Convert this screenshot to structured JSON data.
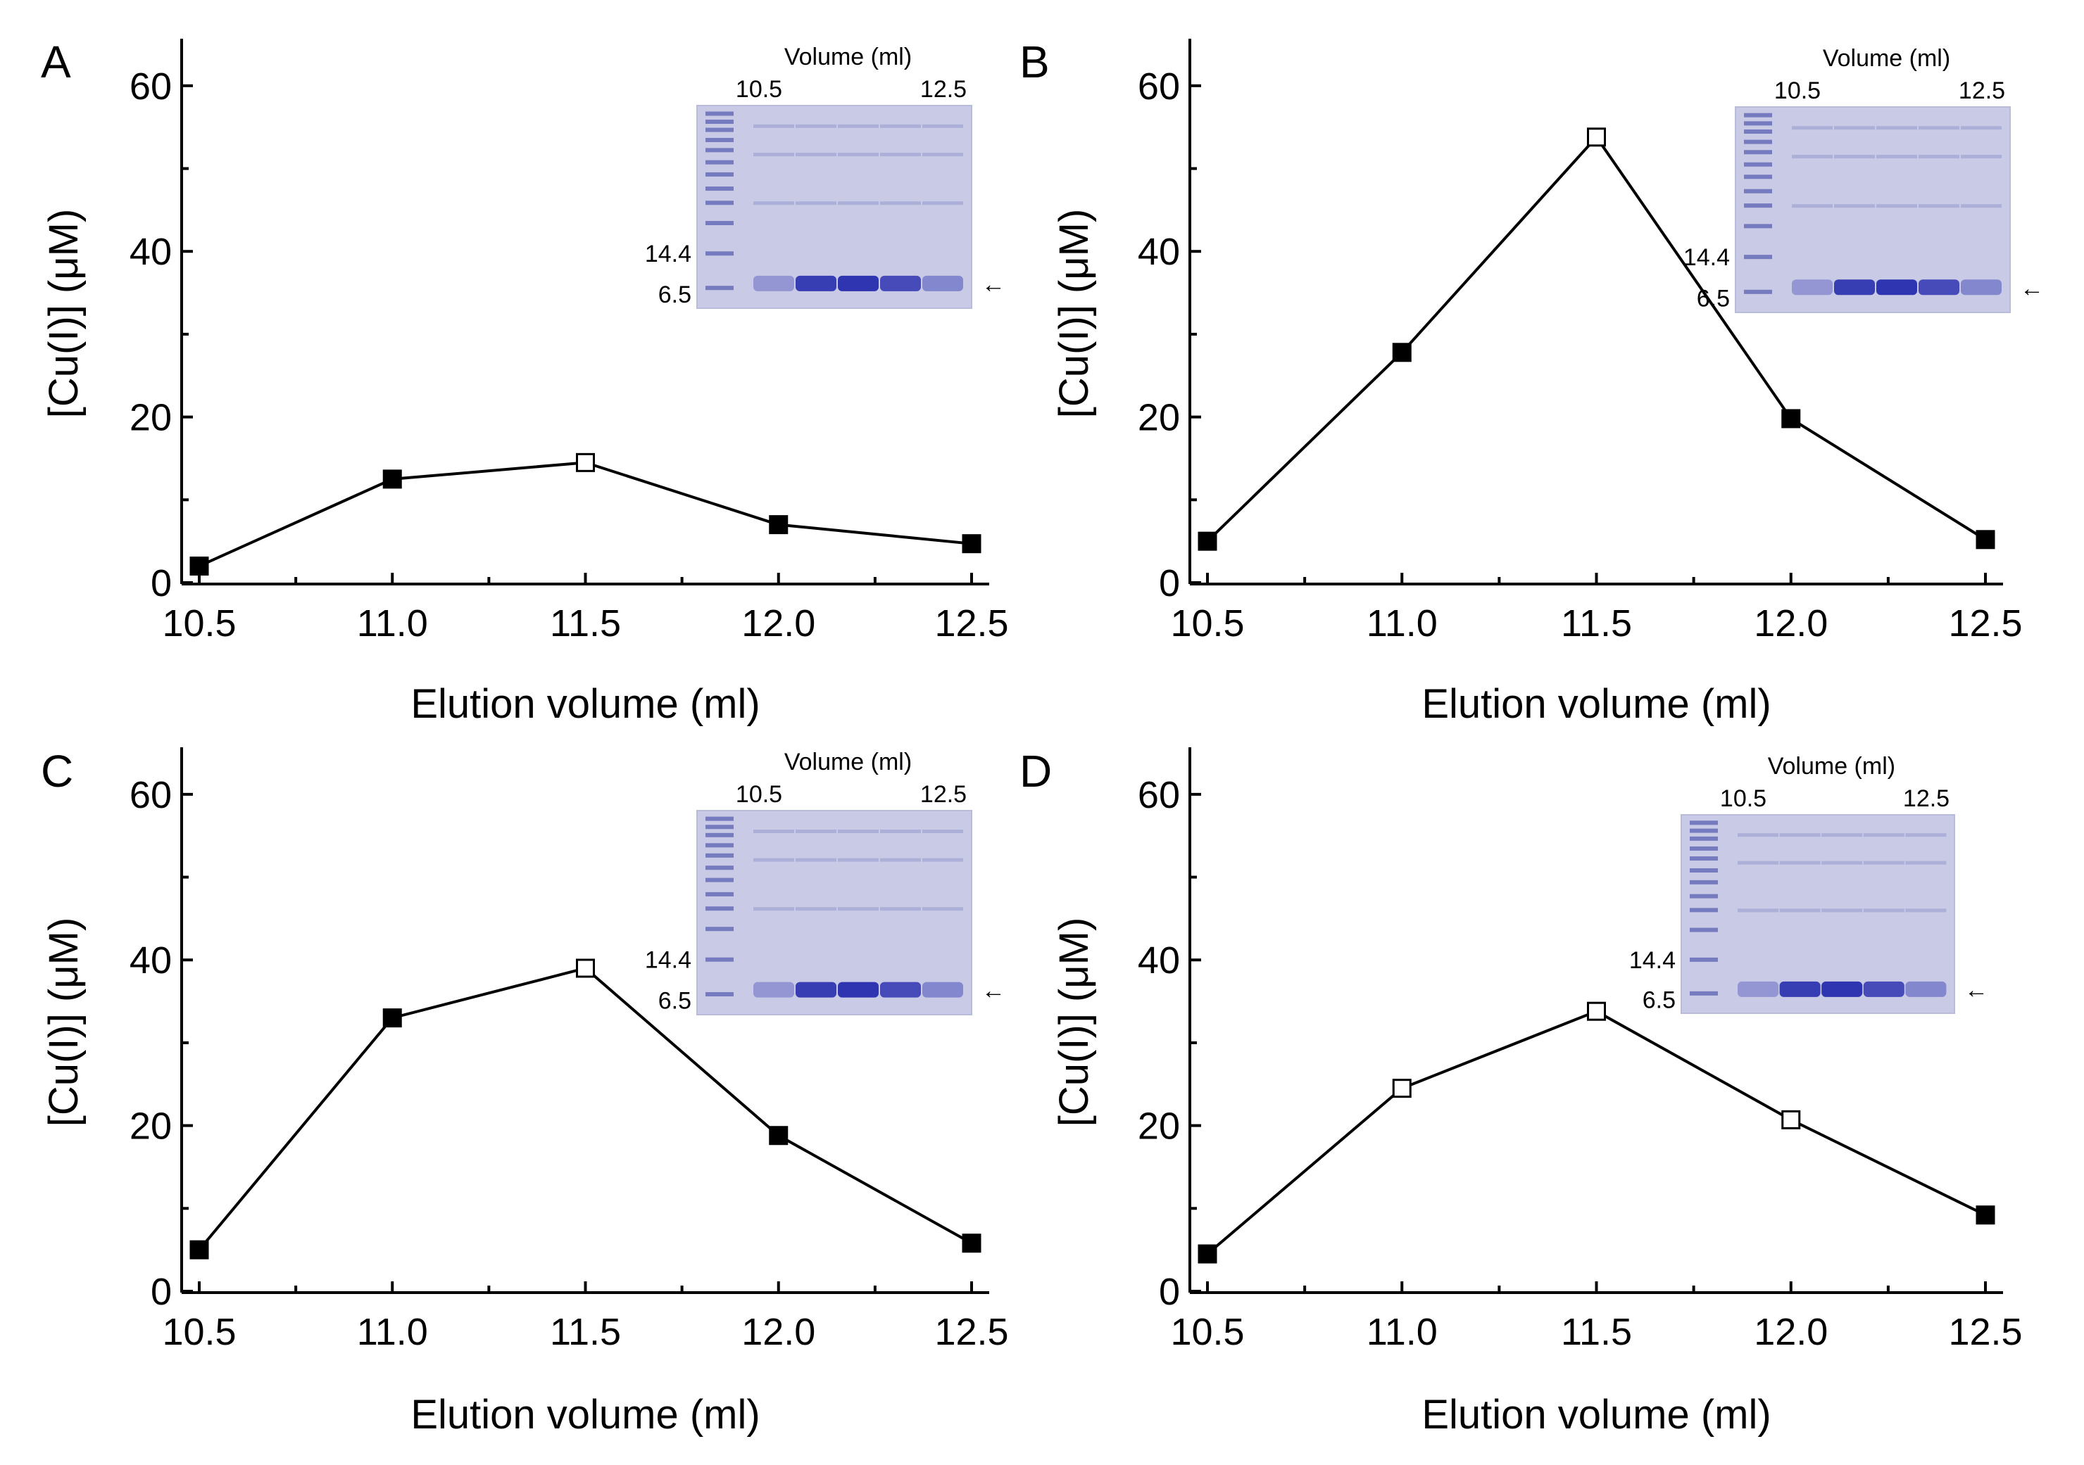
{
  "chart_data": [
    {
      "type": "line",
      "panel": "A",
      "x": [
        10.5,
        11.0,
        11.5,
        12.0,
        12.5
      ],
      "values": [
        2,
        12.5,
        14.5,
        7,
        4.7
      ],
      "markers": [
        "filled",
        "filled",
        "open",
        "filled",
        "filled"
      ],
      "xlabel": "Elution volume (ml)",
      "ylabel": "[Cu(I)] (μM)",
      "xlim": [
        10.5,
        12.5
      ],
      "ylim": [
        0,
        65
      ],
      "xticks": [
        "10.5",
        "11.0",
        "11.5",
        "12.0",
        "12.5"
      ],
      "yticks": [
        "0",
        "20",
        "40",
        "60"
      ],
      "inset": {
        "title": "Volume (ml)",
        "left_label": "10.5",
        "right_label": "12.5",
        "marker_top": "14.4",
        "marker_bottom": "6.5",
        "arrow": "←"
      }
    },
    {
      "type": "line",
      "panel": "B",
      "x": [
        10.5,
        11.0,
        11.5,
        12.0,
        12.5
      ],
      "values": [
        5,
        27.8,
        53.8,
        19.8,
        5.2
      ],
      "markers": [
        "filled",
        "filled",
        "open",
        "filled",
        "filled"
      ],
      "xlabel": "Elution volume (ml)",
      "ylabel": "[Cu(I)] (μM)",
      "xlim": [
        10.5,
        12.5
      ],
      "ylim": [
        0,
        65
      ],
      "xticks": [
        "10.5",
        "11.0",
        "11.5",
        "12.0",
        "12.5"
      ],
      "yticks": [
        "0",
        "20",
        "40",
        "60"
      ],
      "inset": {
        "title": "Volume (ml)",
        "left_label": "10.5",
        "right_label": "12.5",
        "marker_top": "14.4",
        "marker_bottom": "6.5",
        "arrow": "←"
      }
    },
    {
      "type": "line",
      "panel": "C",
      "x": [
        10.5,
        11.0,
        11.5,
        12.0,
        12.5
      ],
      "values": [
        5,
        33,
        39,
        18.8,
        5.8
      ],
      "markers": [
        "filled",
        "filled",
        "open",
        "filled",
        "filled"
      ],
      "xlabel": "Elution volume (ml)",
      "ylabel": "[Cu(I)] (μM)",
      "xlim": [
        10.5,
        12.5
      ],
      "ylim": [
        0,
        65
      ],
      "xticks": [
        "10.5",
        "11.0",
        "11.5",
        "12.0",
        "12.5"
      ],
      "yticks": [
        "0",
        "20",
        "40",
        "60"
      ],
      "inset": {
        "title": "Volume (ml)",
        "left_label": "10.5",
        "right_label": "12.5",
        "marker_top": "14.4",
        "marker_bottom": "6.5",
        "arrow": "←"
      }
    },
    {
      "type": "line",
      "panel": "D",
      "x": [
        10.5,
        11.0,
        11.5,
        12.0,
        12.5
      ],
      "values": [
        4.5,
        24.5,
        33.8,
        20.7,
        9.2
      ],
      "markers": [
        "filled",
        "open",
        "open",
        "open",
        "filled"
      ],
      "xlabel": "Elution volume (ml)",
      "ylabel": "[Cu(I)] (μM)",
      "xlim": [
        10.5,
        12.5
      ],
      "ylim": [
        0,
        65
      ],
      "xticks": [
        "10.5",
        "11.0",
        "11.5",
        "12.0",
        "12.5"
      ],
      "yticks": [
        "0",
        "20",
        "40",
        "60"
      ],
      "inset": {
        "title": "Volume (ml)",
        "left_label": "10.5",
        "right_label": "12.5",
        "marker_top": "14.4",
        "marker_bottom": "6.5",
        "arrow": "←"
      }
    }
  ]
}
